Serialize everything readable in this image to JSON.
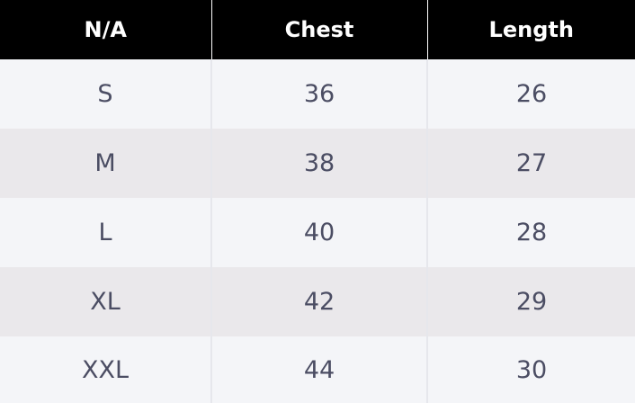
{
  "table": {
    "headers": [
      "N/A",
      "Chest",
      "Length"
    ],
    "rows": [
      [
        "S",
        "36",
        "26"
      ],
      [
        "M",
        "38",
        "27"
      ],
      [
        "L",
        "40",
        "28"
      ],
      [
        "XL",
        "42",
        "29"
      ],
      [
        "XXL",
        "44",
        "30"
      ]
    ]
  },
  "colors": {
    "header_bg": "#000000",
    "header_text": "#ffffff",
    "row_odd_bg": "#f4f5f8",
    "row_even_bg": "#eae8eb",
    "cell_text": "#4b4d63"
  }
}
